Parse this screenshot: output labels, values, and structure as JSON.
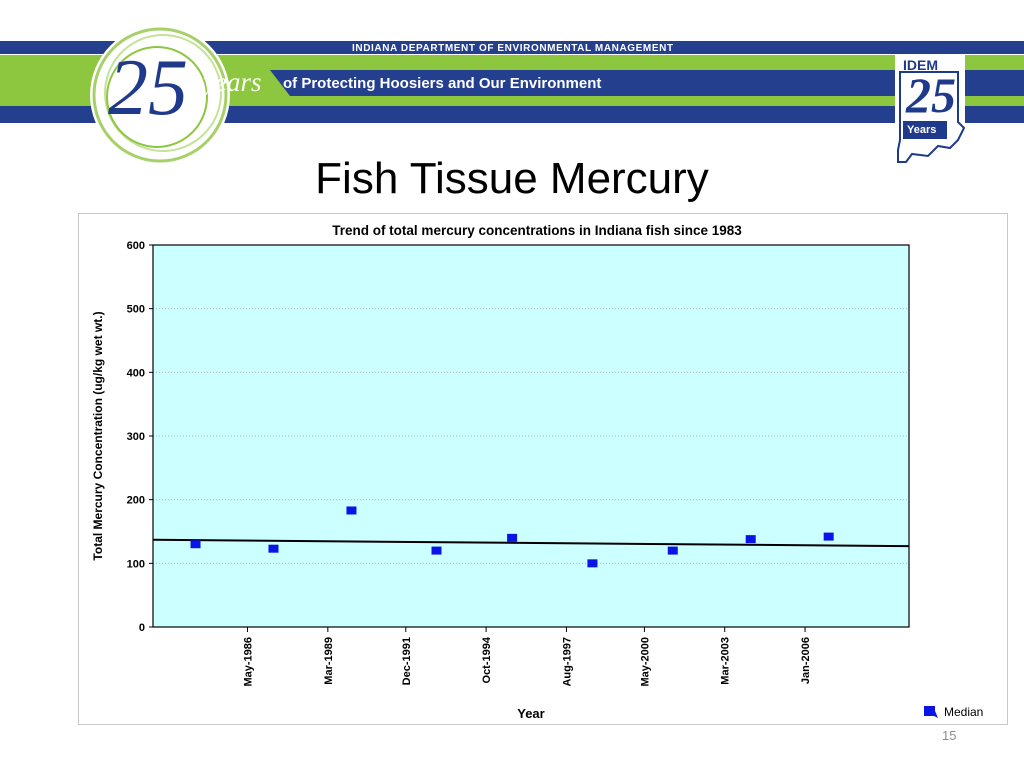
{
  "slide": {
    "banner_top": "INDIANA DEPARTMENT OF ENVIRONMENTAL MANAGEMENT",
    "tagline": "of Protecting Hoosiers and Our Environment",
    "logo_number": "25",
    "logo_word": "years",
    "idem_label": "IDEM",
    "idem_number": "25",
    "idem_years": "Years",
    "title": "Fish Tissue Mercury",
    "slide_number": "15",
    "colors": {
      "banner_blue": "#253f8f",
      "banner_green": "#8dc63f",
      "plot_background": "#ccffff",
      "marker": "#0a14e6",
      "trend_line": "#000000"
    }
  },
  "chart_data": {
    "type": "scatter",
    "title": "Trend of total mercury concentrations in Indiana fish since 1983",
    "xlabel": "Year",
    "ylabel": "Total Mercury Concentration (ug/kg wet wt.)",
    "ylim": [
      0,
      600
    ],
    "yticks": [
      0,
      100,
      200,
      300,
      400,
      500,
      600
    ],
    "xlim": [
      "1983-01",
      "2009-09"
    ],
    "xticks": [
      {
        "label": "May-1986",
        "date": "1986-05"
      },
      {
        "label": "Mar-1989",
        "date": "1989-03"
      },
      {
        "label": "Dec-1991",
        "date": "1991-12"
      },
      {
        "label": "Oct-1994",
        "date": "1994-10"
      },
      {
        "label": "Aug-1997",
        "date": "1997-08"
      },
      {
        "label": "May-2000",
        "date": "2000-05"
      },
      {
        "label": "Mar-2003",
        "date": "2003-03"
      },
      {
        "label": "Jan-2006",
        "date": "2006-01"
      }
    ],
    "grid": true,
    "legend_position": "bottom-right",
    "series": [
      {
        "name": "Median",
        "points": [
          {
            "x": "1984-07",
            "y": 130
          },
          {
            "x": "1987-04",
            "y": 123
          },
          {
            "x": "1990-01",
            "y": 183
          },
          {
            "x": "1993-01",
            "y": 120
          },
          {
            "x": "1995-09",
            "y": 140
          },
          {
            "x": "1998-07",
            "y": 100
          },
          {
            "x": "2001-05",
            "y": 120
          },
          {
            "x": "2004-02",
            "y": 138
          },
          {
            "x": "2006-11",
            "y": 142
          }
        ]
      }
    ],
    "trend_line": [
      {
        "x": "1983-01",
        "y": 137
      },
      {
        "x": "2009-09",
        "y": 127
      }
    ]
  }
}
